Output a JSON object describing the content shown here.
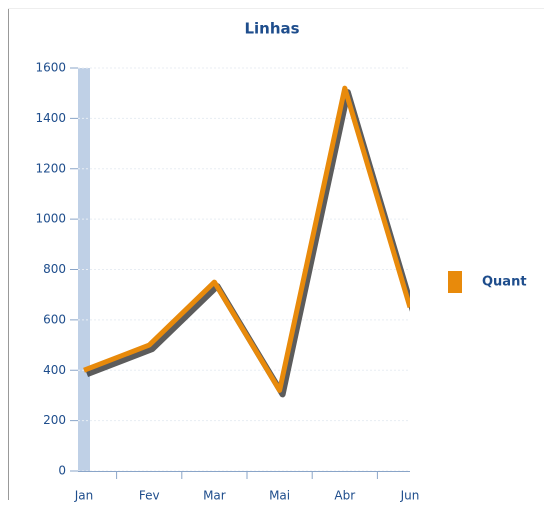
{
  "chart_data": {
    "type": "line",
    "title": "Linhas",
    "categories": [
      "Jan",
      "Fev",
      "Mar",
      "Mai",
      "Abr",
      "Jun"
    ],
    "series": [
      {
        "name": "Quant",
        "color": "#e88a0b",
        "values": [
          400,
          500,
          750,
          320,
          1520,
          650
        ]
      }
    ],
    "ylim": [
      0,
      1600
    ],
    "yticks": [
      0,
      200,
      400,
      600,
      800,
      1000,
      1200,
      1400,
      1600
    ],
    "grid": true,
    "legend": "right"
  }
}
